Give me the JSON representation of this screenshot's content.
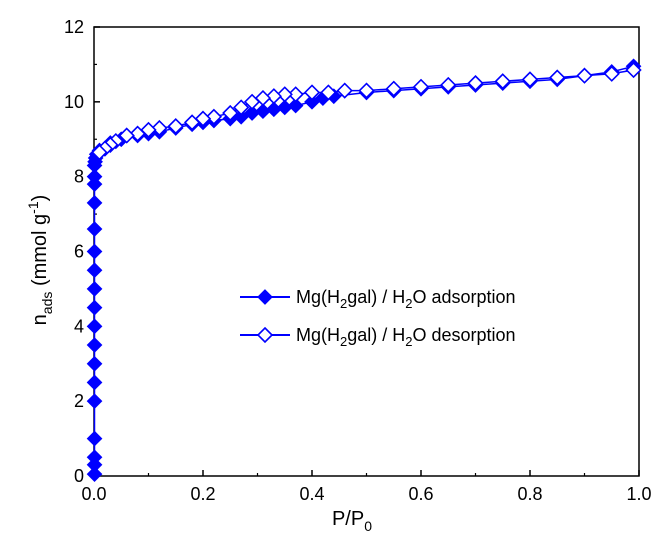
{
  "chart_data": {
    "type": "scatter",
    "xlim": [
      0,
      1.0
    ],
    "ylim": [
      0,
      12
    ],
    "x_ticks": [
      "0.0",
      "0.2",
      "0.4",
      "0.6",
      "0.8",
      "1.0"
    ],
    "y_ticks": [
      "0",
      "2",
      "4",
      "6",
      "8",
      "10",
      "12"
    ],
    "xlabel": {
      "main": "P/P",
      "sub": "0"
    },
    "ylabel": {
      "main": "n",
      "sub": "ads",
      "rest": " (mmol g",
      "sup": "-1",
      "end": ")"
    },
    "grid": false,
    "legend_position": "center-right",
    "color": "#0000ff",
    "series": [
      {
        "name": {
          "pre": "Mg(H",
          "sub": "2",
          "mid": "gal) / H",
          "sub2": "2",
          "post": "O adsorption"
        },
        "marker": "filled-diamond",
        "x": [
          0.001,
          0.001,
          0.001,
          0.001,
          0.001,
          0.001,
          0.001,
          0.001,
          0.001,
          0.001,
          0.001,
          0.001,
          0.001,
          0.001,
          0.001,
          0.001,
          0.001,
          0.001,
          0.002,
          0.003,
          0.005,
          0.01,
          0.03,
          0.05,
          0.08,
          0.1,
          0.12,
          0.15,
          0.18,
          0.2,
          0.22,
          0.25,
          0.27,
          0.29,
          0.31,
          0.33,
          0.35,
          0.37,
          0.4,
          0.42,
          0.44,
          0.5,
          0.55,
          0.6,
          0.65,
          0.7,
          0.75,
          0.8,
          0.85,
          0.9,
          0.95,
          0.99
        ],
        "y": [
          0.05,
          0.3,
          0.5,
          1.0,
          2.0,
          2.5,
          3.0,
          3.5,
          4.0,
          4.5,
          5.0,
          5.5,
          6.0,
          6.6,
          7.3,
          7.8,
          8.0,
          8.3,
          8.4,
          8.5,
          8.6,
          8.7,
          8.9,
          9.0,
          9.1,
          9.15,
          9.2,
          9.3,
          9.4,
          9.45,
          9.5,
          9.55,
          9.6,
          9.7,
          9.75,
          9.8,
          9.85,
          9.9,
          10.0,
          10.1,
          10.15,
          10.25,
          10.3,
          10.35,
          10.4,
          10.45,
          10.5,
          10.55,
          10.6,
          10.7,
          10.8,
          10.95
        ]
      },
      {
        "name": {
          "pre": "Mg(H",
          "sub": "2",
          "mid": "gal) / H",
          "sub2": "2",
          "post": "O desorption"
        },
        "marker": "open-diamond",
        "x": [
          0.99,
          0.95,
          0.9,
          0.85,
          0.8,
          0.75,
          0.7,
          0.65,
          0.6,
          0.55,
          0.5,
          0.46,
          0.43,
          0.4,
          0.37,
          0.35,
          0.33,
          0.31,
          0.29,
          0.27,
          0.25,
          0.22,
          0.2,
          0.18,
          0.15,
          0.12,
          0.1,
          0.08,
          0.06,
          0.04,
          0.03,
          0.02,
          0.01
        ],
        "y": [
          10.85,
          10.75,
          10.7,
          10.65,
          10.6,
          10.55,
          10.5,
          10.45,
          10.4,
          10.35,
          10.3,
          10.3,
          10.25,
          10.25,
          10.2,
          10.2,
          10.15,
          10.1,
          10.0,
          9.85,
          9.7,
          9.6,
          9.55,
          9.45,
          9.35,
          9.3,
          9.25,
          9.15,
          9.1,
          8.95,
          8.85,
          8.75,
          8.65
        ]
      }
    ]
  }
}
